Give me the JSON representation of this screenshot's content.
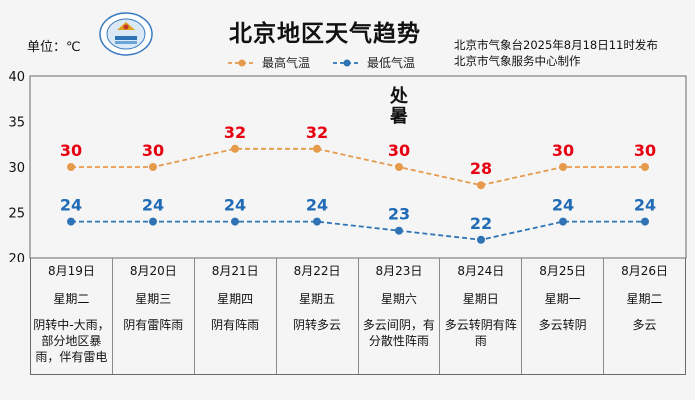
{
  "header": {
    "unit": "单位：℃",
    "title": "北京地区天气趋势",
    "issuer_line1": "北京市气象台2025年8月18日11时发布",
    "issuer_line2": "北京市气象服务中心制作"
  },
  "colors": {
    "high": "#e59a4c",
    "high_label": "#e60012",
    "low": "#2e74b5",
    "low_label": "#1f6bb5"
  },
  "chart_data": {
    "type": "line",
    "categories": [
      "8月19日",
      "8月20日",
      "8月21日",
      "8月22日",
      "8月23日",
      "8月24日",
      "8月25日",
      "8月26日"
    ],
    "series": [
      {
        "name": "最高气温",
        "values": [
          30,
          30,
          32,
          32,
          30,
          28,
          30,
          30
        ]
      },
      {
        "name": "最低气温",
        "values": [
          24,
          24,
          24,
          24,
          23,
          22,
          24,
          24
        ]
      }
    ],
    "yticks": [
      20,
      25,
      30,
      35,
      40
    ],
    "ylim": [
      20,
      40
    ],
    "legend_position": "top-center",
    "annotation": {
      "text": "处暑",
      "at_category": "8月23日"
    }
  },
  "forecast": [
    {
      "date": "8月19日",
      "weekday": "星期二",
      "weather": "阴转中-大雨，部分地区暴雨，伴有雷电"
    },
    {
      "date": "8月20日",
      "weekday": "星期三",
      "weather": "阴有雷阵雨"
    },
    {
      "date": "8月21日",
      "weekday": "星期四",
      "weather": "阴有阵雨"
    },
    {
      "date": "8月22日",
      "weekday": "星期五",
      "weather": "阴转多云"
    },
    {
      "date": "8月23日",
      "weekday": "星期六",
      "weather": "多云间阴，有分散性阵雨"
    },
    {
      "date": "8月24日",
      "weekday": "星期日",
      "weather": "多云转阴有阵雨"
    },
    {
      "date": "8月25日",
      "weekday": "星期一",
      "weather": "多云转阴"
    },
    {
      "date": "8月26日",
      "weekday": "星期二",
      "weather": "多云"
    }
  ]
}
